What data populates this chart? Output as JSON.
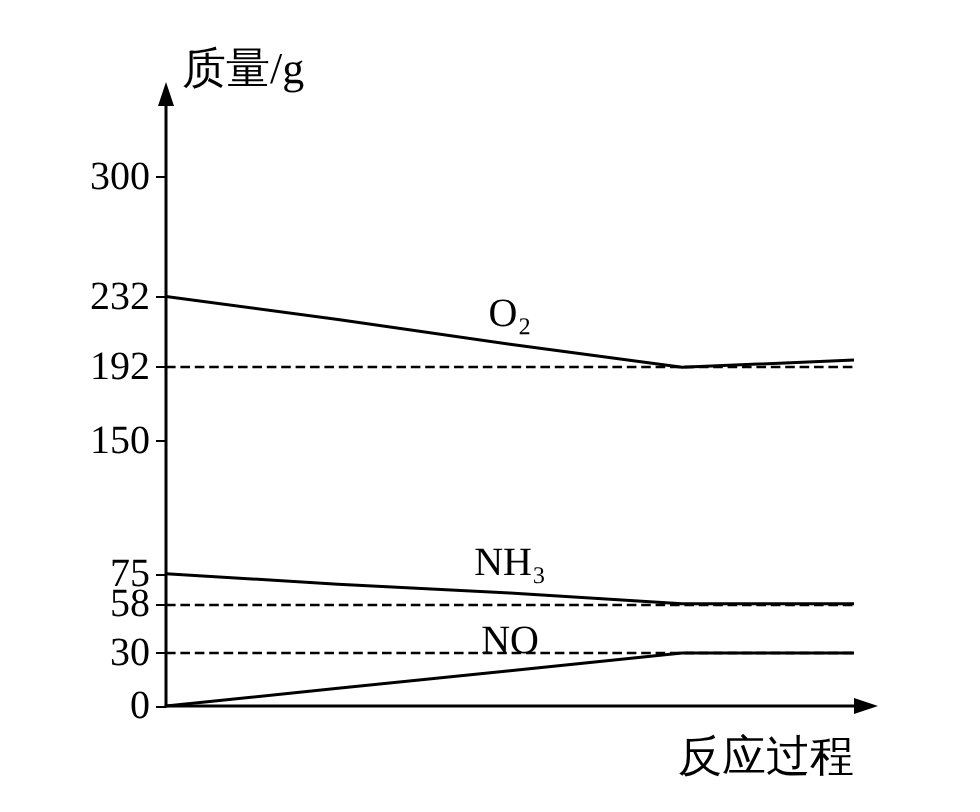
{
  "chart_data": {
    "type": "line",
    "xlabel": "反应过程",
    "ylabel": "质量/g",
    "categories": [
      null,
      null,
      null,
      null,
      null
    ],
    "series": [
      {
        "name": "O₂",
        "color": "#000000",
        "values": [
          232,
          219,
          205,
          192,
          196
        ]
      },
      {
        "name": "NH₃",
        "color": "#000000",
        "values": [
          75,
          69,
          64,
          58,
          58
        ]
      },
      {
        "name": "NO",
        "color": "#000000",
        "values": [
          0,
          10,
          20,
          30,
          30
        ]
      }
    ],
    "ylim": [
      0,
      340
    ],
    "yticks": [
      0,
      30,
      58,
      75,
      150,
      192,
      232,
      300
    ],
    "ref_lines": [
      {
        "axis": "y",
        "value": 192,
        "color": "#000000",
        "line_style": "dashed"
      },
      {
        "axis": "y",
        "value": 58,
        "color": "#000000",
        "line_style": "dashed"
      },
      {
        "axis": "y",
        "value": 30,
        "color": "#000000",
        "line_style": "dashed"
      }
    ],
    "grid": false,
    "marker": "none",
    "line_style": "solid"
  }
}
